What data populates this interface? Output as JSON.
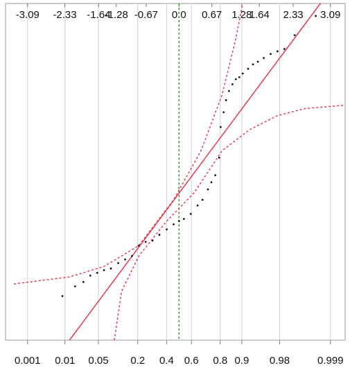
{
  "chart_data": {
    "type": "scatter",
    "xlim": [
      -3.37,
      3.39
    ],
    "ylim": [
      0,
      100
    ],
    "xticks": [
      -3.09,
      -2.33,
      -1.64,
      -1.28,
      -0.67,
      {
        "value": 0,
        "label": "0.0"
      },
      0.67,
      1.28,
      1.64,
      2.33,
      3.09
    ],
    "x2ticks": [
      0.001,
      0.01,
      0.05,
      0.2,
      0.4,
      0.6,
      0.8,
      0.9,
      0.98,
      0.999
    ],
    "x2scale": "probability",
    "grid": true,
    "median_line": {
      "x": 0,
      "color": "#2ca02c"
    },
    "reference_line": {
      "x": [
        -2.235,
        2.885
      ],
      "y": [
        0,
        100
      ],
      "color": "#e8384f"
    },
    "series": [
      {
        "color": "#111111",
        "x": [
          -2.38,
          -2.12,
          -1.95,
          -1.81,
          -1.67,
          -1.53,
          -1.39,
          -1.24,
          -1.1,
          -0.96,
          -0.82,
          -0.68,
          -0.54,
          -0.4,
          -0.25,
          -0.11,
          0,
          0.1,
          0.24,
          0.38,
          0.48,
          0.59,
          0.66,
          0.74,
          0.82,
          0.85,
          0.91,
          0.96,
          1.02,
          1.09,
          1.16,
          1.23,
          1.3,
          1.41,
          1.51,
          1.61,
          1.73,
          1.87,
          2.01,
          2.15,
          2.36,
          2.79
        ],
        "values": [
          13.1,
          16.0,
          17.3,
          19.2,
          20.0,
          20.8,
          21.3,
          22.9,
          24.0,
          25.0,
          28.1,
          29.2,
          29.6,
          31.3,
          32.9,
          34.4,
          35.4,
          36.0,
          37.5,
          40.0,
          41.7,
          44.8,
          46.9,
          49.0,
          54.2,
          63.3,
          67.7,
          71.3,
          74.0,
          76.0,
          77.5,
          78.1,
          79.2,
          80.6,
          81.9,
          82.7,
          83.8,
          85.0,
          85.8,
          86.5,
          90.6,
          96.3
        ]
      },
      {
        "color": "#e8384f",
        "style": "dashed",
        "x": [
          -3.37,
          -2.23,
          -1.53,
          -0.82,
          -0.11,
          0.45,
          0.88,
          1.16,
          1.3
        ],
        "values": [
          16.7,
          18.8,
          21.9,
          28.1,
          41.7,
          56.3,
          72.9,
          89.6,
          100
        ]
      },
      {
        "color": "#e8384f",
        "style": "dashed",
        "x": [
          -1.32,
          -1.17,
          -0.82,
          -0.25,
          0.31,
          0.88,
          1.44,
          2.01,
          2.57,
          3.39
        ],
        "values": [
          0,
          14.6,
          25,
          35.4,
          43.8,
          56.3,
          62.5,
          66.7,
          68.8,
          69.8
        ]
      }
    ]
  }
}
